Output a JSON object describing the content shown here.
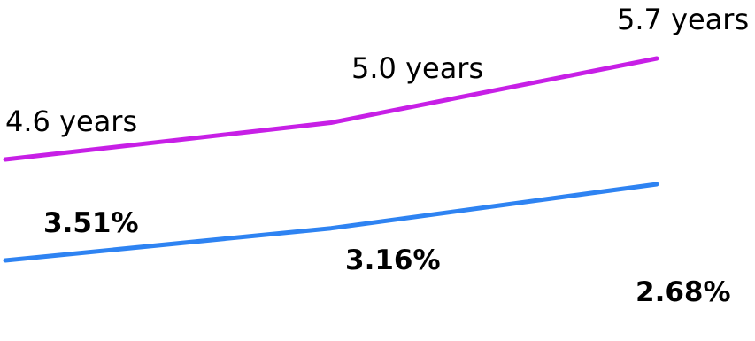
{
  "chart_data": {
    "type": "line",
    "categories": [
      "",
      "",
      ""
    ],
    "series": [
      {
        "values": [
          4.6,
          5.0,
          5.7
        ],
        "data_labels": [
          "4.6 years",
          "5.0 years",
          "5.7 years"
        ],
        "color": "#c71fe6"
      },
      {
        "values": [
          3.51,
          3.16,
          2.68
        ],
        "data_labels": [
          "3.51%",
          "3.16%",
          "2.68%"
        ],
        "color": "#2e83f2"
      }
    ],
    "title": "",
    "xlabel": "",
    "ylabel": "",
    "grid": false,
    "legend": "none"
  }
}
